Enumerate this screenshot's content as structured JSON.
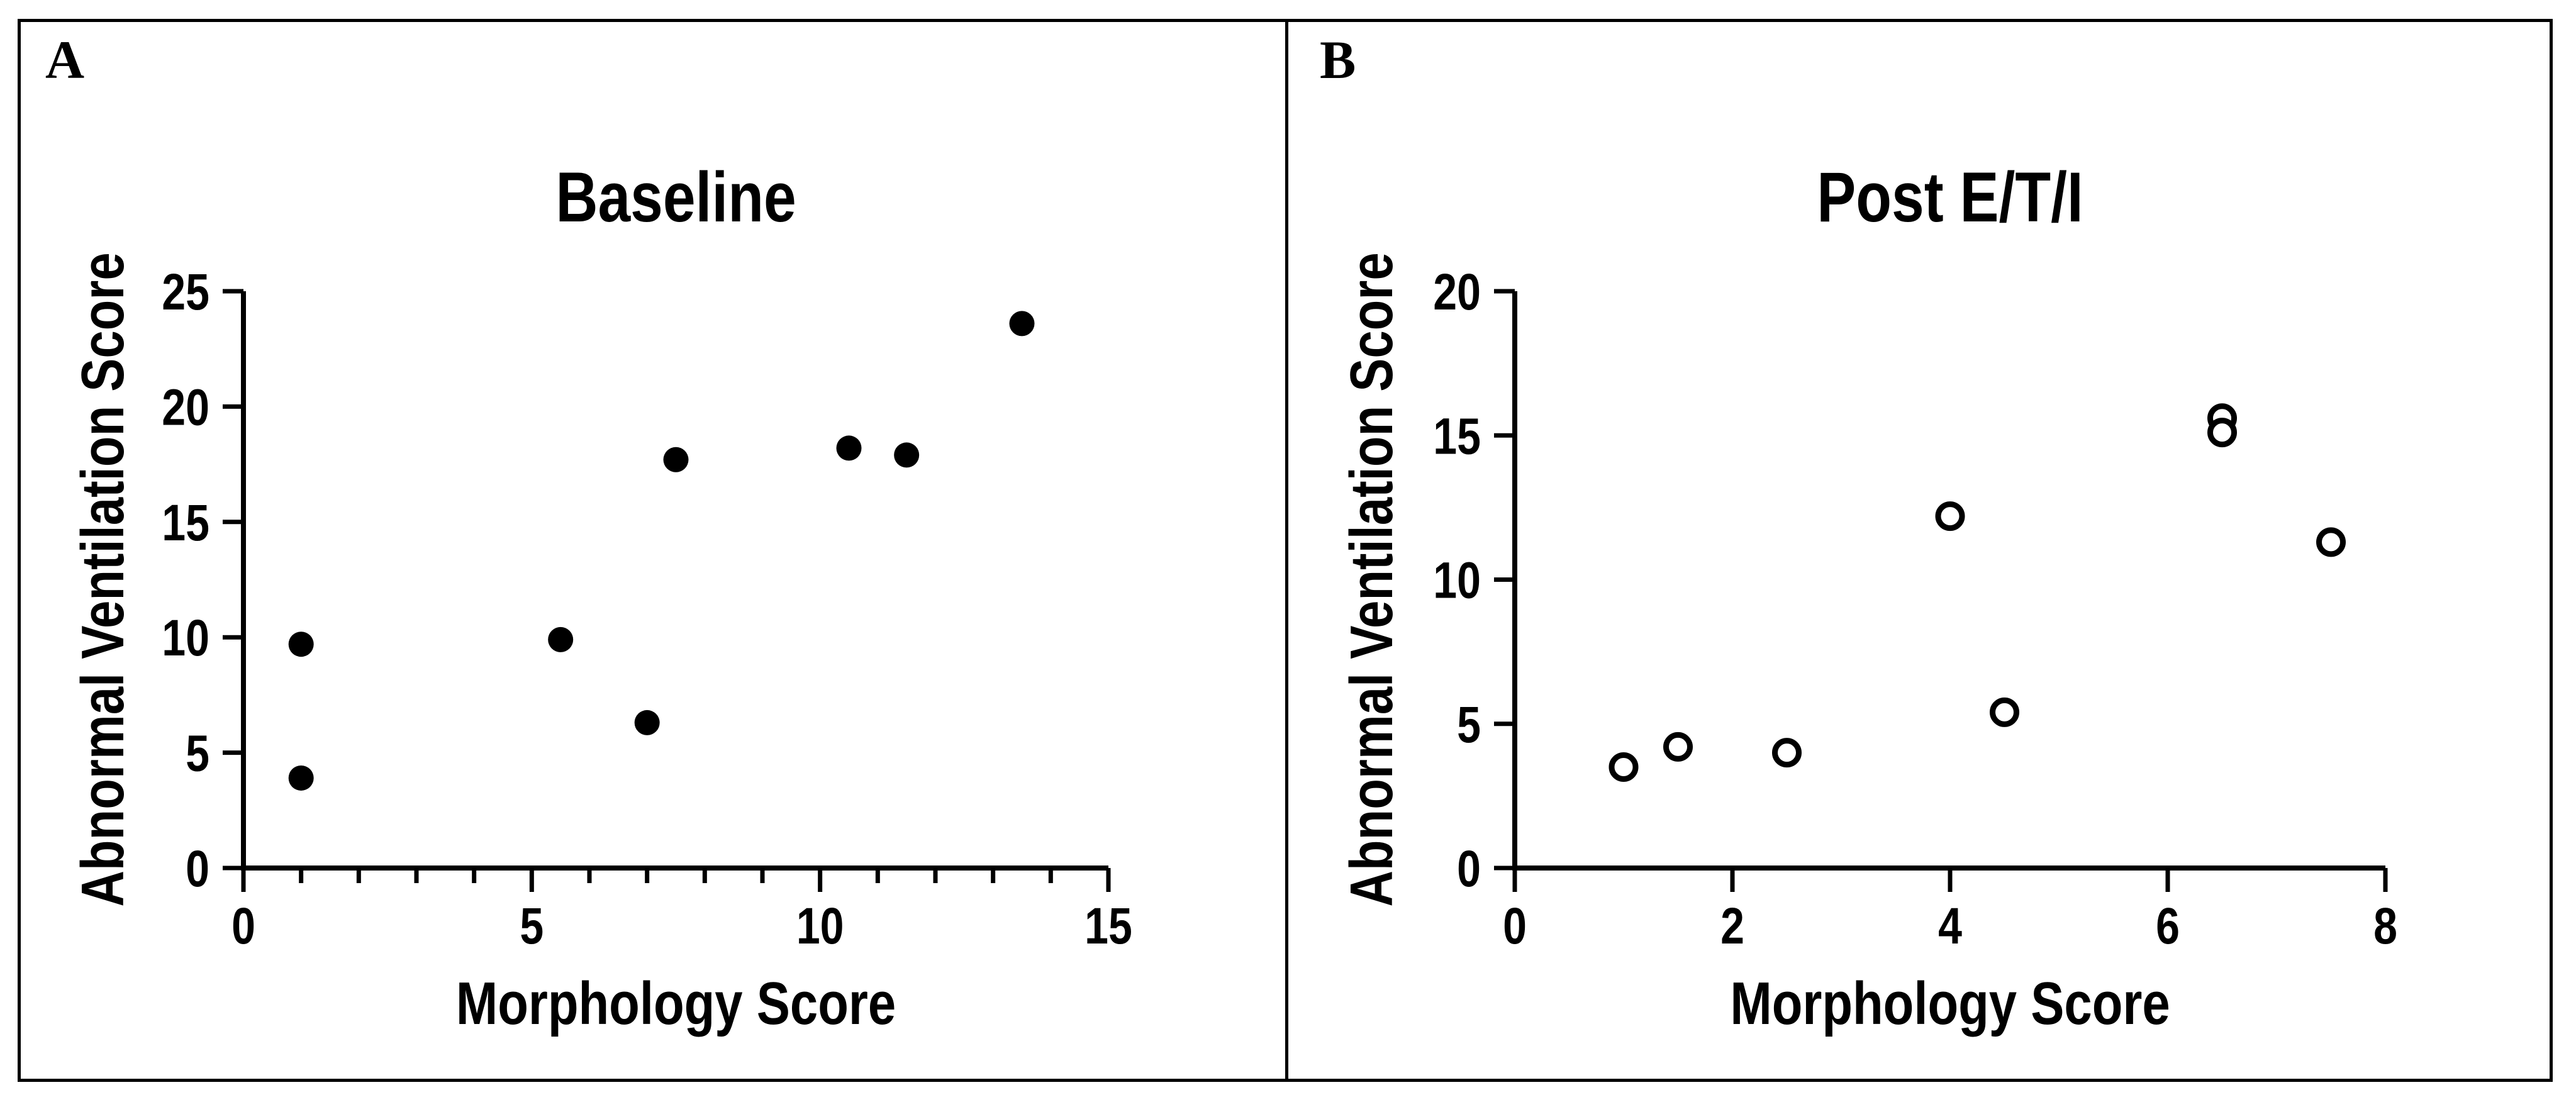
{
  "figure": {
    "panel_a_letter": "A",
    "panel_b_letter": "B",
    "ink_color": "#000000",
    "background_color": "#ffffff"
  },
  "chart_data": [
    {
      "type": "scatter",
      "panel": "A",
      "title": "Baseline",
      "xlabel": "Morphology Score",
      "ylabel": "Abnormal Ventilation Score",
      "xlim": [
        0,
        15
      ],
      "ylim": [
        0,
        25
      ],
      "x_major_ticks": [
        0,
        5,
        10,
        15
      ],
      "x_minor_tick_step": 1,
      "y_major_ticks": [
        0,
        5,
        10,
        15,
        20,
        25
      ],
      "legend": "none",
      "grid": "off",
      "marker": "filled-circle",
      "marker_color": "#000000",
      "points": [
        {
          "x": 1,
          "y": 9.7
        },
        {
          "x": 1,
          "y": 3.9
        },
        {
          "x": 5.5,
          "y": 9.9
        },
        {
          "x": 7,
          "y": 6.3
        },
        {
          "x": 7.5,
          "y": 17.7
        },
        {
          "x": 10.5,
          "y": 18.2
        },
        {
          "x": 11.5,
          "y": 17.9
        },
        {
          "x": 13.5,
          "y": 23.6
        }
      ]
    },
    {
      "type": "scatter",
      "panel": "B",
      "title": "Post E/T/I",
      "xlabel": "Morphology Score",
      "ylabel": "Abnormal Ventilation Score",
      "xlim": [
        0,
        8
      ],
      "ylim": [
        0,
        20
      ],
      "x_major_ticks": [
        0,
        2,
        4,
        6,
        8
      ],
      "x_minor_tick_step": null,
      "y_major_ticks": [
        0,
        5,
        10,
        15,
        20
      ],
      "legend": "none",
      "grid": "off",
      "marker": "open-circle",
      "marker_color": "#000000",
      "points": [
        {
          "x": 1,
          "y": 3.5
        },
        {
          "x": 1.5,
          "y": 4.2
        },
        {
          "x": 2.5,
          "y": 4.0
        },
        {
          "x": 4,
          "y": 12.2
        },
        {
          "x": 4.5,
          "y": 5.4
        },
        {
          "x": 6.5,
          "y": 15.6
        },
        {
          "x": 6.5,
          "y": 15.1
        },
        {
          "x": 7.5,
          "y": 11.3
        }
      ]
    }
  ]
}
